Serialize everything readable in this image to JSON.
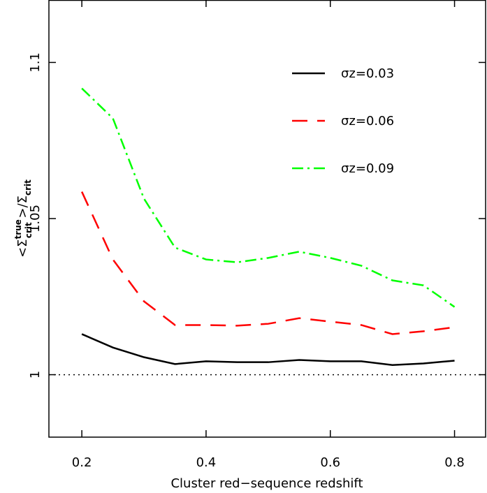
{
  "chart_data": {
    "type": "line",
    "xlabel": "Cluster red−sequence redshift",
    "ylabel_parts": [
      "<Σ",
      "true",
      "crit",
      " >/Σ",
      "crit"
    ],
    "x": [
      0.2,
      0.25,
      0.3,
      0.35,
      0.4,
      0.45,
      0.5,
      0.55,
      0.6,
      0.65,
      0.7,
      0.75,
      0.8
    ],
    "series": [
      {
        "name": "σz=0.03",
        "color": "#000000",
        "dash": "solid",
        "values": [
          1.013,
          1.0087,
          1.0056,
          1.0034,
          1.0043,
          1.004,
          1.004,
          1.0047,
          1.0043,
          1.0043,
          1.0031,
          1.0036,
          1.0045
        ]
      },
      {
        "name": "σz=0.06",
        "color": "#ff0000",
        "dash": "dashed",
        "values": [
          1.0586,
          1.0369,
          1.0235,
          1.0159,
          1.0159,
          1.0157,
          1.0163,
          1.0181,
          1.017,
          1.0159,
          1.013,
          1.0139,
          1.0152
        ]
      },
      {
        "name": "σz=0.09",
        "color": "#00ff00",
        "dash": "dashdot",
        "values": [
          1.0917,
          1.0821,
          1.0564,
          1.0407,
          1.0369,
          1.036,
          1.0374,
          1.0394,
          1.0374,
          1.0349,
          1.0302,
          1.0286,
          1.0217
        ]
      }
    ],
    "reference_line": 1,
    "xlim": [
      0.147,
      0.85
    ],
    "ylim": [
      0.98,
      1.12
    ],
    "xticks": [
      0.2,
      0.4,
      0.6,
      0.8
    ],
    "yticks": [
      1,
      1.05,
      1.1
    ]
  }
}
